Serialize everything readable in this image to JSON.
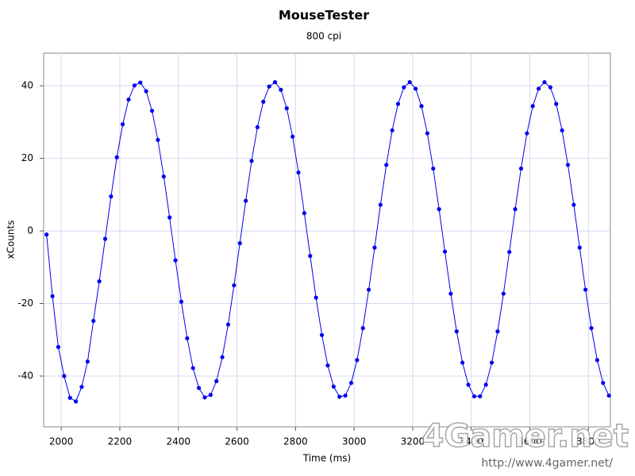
{
  "chart_data": {
    "type": "line",
    "title": "MouseTester",
    "subtitle": "800 cpi",
    "x_label": "Time (ms)",
    "y_label": "xCounts",
    "x": [
      1950,
      1970,
      1990,
      2010,
      2030,
      2050,
      2070,
      2090,
      2110,
      2130,
      2150,
      2170,
      2190,
      2210,
      2230,
      2250,
      2270,
      2290,
      2310,
      2330,
      2350,
      2370,
      2390,
      2410,
      2430,
      2450,
      2470,
      2490,
      2510,
      2530,
      2550,
      2570,
      2590,
      2610,
      2630,
      2650,
      2670,
      2690,
      2710,
      2730,
      2750,
      2770,
      2790,
      2810,
      2830,
      2850,
      2870,
      2890,
      2910,
      2930,
      2950,
      2970,
      2990,
      3010,
      3030,
      3050,
      3070,
      3090,
      3110,
      3130,
      3150,
      3170,
      3190,
      3210,
      3230,
      3250,
      3270,
      3290,
      3310,
      3330,
      3350,
      3370,
      3390,
      3410,
      3430,
      3450,
      3470,
      3490,
      3510,
      3530,
      3550,
      3570,
      3590,
      3610,
      3630,
      3650,
      3670,
      3690,
      3710,
      3730,
      3750,
      3770,
      3790,
      3810,
      3830,
      3850,
      3870
    ],
    "series": [
      {
        "color": "#0000ee",
        "values": [
          -1,
          -18,
          -32,
          -40,
          -46,
          -47,
          -43,
          -36,
          -24.8,
          -13.9,
          -2.2,
          9.5,
          20.3,
          29.4,
          36.2,
          40.1,
          40.9,
          38.5,
          33.1,
          25.1,
          15.0,
          3.7,
          -8.1,
          -19.5,
          -29.6,
          -37.8,
          -43.3,
          -45.9,
          -45.2,
          -41.4,
          -34.8,
          -25.8,
          -15.0,
          -3.4,
          8.3,
          19.3,
          28.6,
          35.6,
          39.8,
          41.0,
          38.9,
          33.8,
          26.0,
          16.1,
          4.9,
          -6.9,
          -18.4,
          -28.7,
          -37.1,
          -42.9,
          -45.7,
          -45.4,
          -41.9,
          -35.6,
          -26.8,
          -16.2,
          -4.6,
          7.2,
          18.2,
          27.7,
          35.0,
          39.6,
          41.0,
          39.2,
          34.4,
          26.9,
          17.2,
          6.0,
          -5.7,
          -17.3,
          -27.7,
          -36.3,
          -42.4,
          -45.6,
          -45.6,
          -42.4,
          -36.3,
          -27.7,
          -17.3,
          -5.8,
          6.0,
          17.2,
          26.9,
          34.4,
          39.2,
          41.0,
          39.6,
          35.0,
          27.7,
          18.2,
          7.2,
          -4.6,
          -16.2,
          -26.8,
          -35.6,
          -41.9,
          -45.4
        ]
      }
    ],
    "xlim": [
      1940,
      3875
    ],
    "ylim": [
      -54,
      49
    ],
    "xticks": [
      2000,
      2200,
      2400,
      2600,
      2800,
      3000,
      3200,
      3400,
      3600,
      3800
    ],
    "yticks": [
      -40,
      -20,
      0,
      20,
      40
    ],
    "grid": true,
    "markers": true,
    "annotations": [
      "4Gamer.net",
      "http://www.4gamer.net/"
    ]
  }
}
